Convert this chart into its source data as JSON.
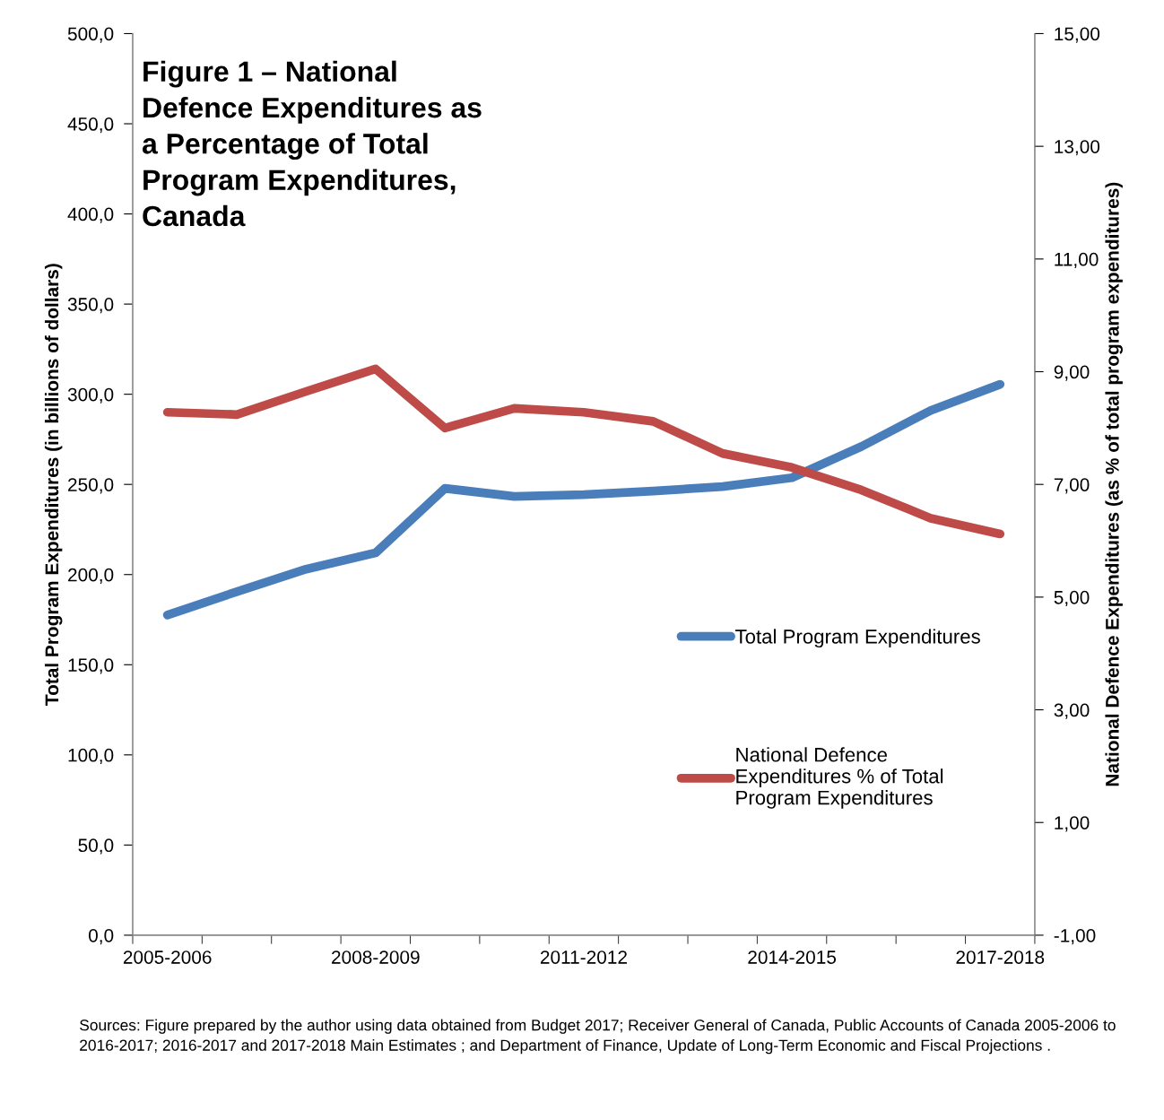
{
  "chart_data": {
    "type": "line",
    "title": "Figure 1 – National\nDefence Expenditures as\na Percentage of Total\nProgram Expenditures,\nCanada",
    "categories": [
      "2005-2006",
      null,
      null,
      "2008-2009",
      null,
      null,
      "2011-2012",
      null,
      null,
      "2014-2015",
      null,
      null,
      "2017-2018"
    ],
    "series": [
      {
        "name": "Total Program Expenditures",
        "color": "#4a7ebb",
        "values": [
          177.6,
          190.5,
          203,
          212,
          247.8,
          243.3,
          244.3,
          246.3,
          248.8,
          253.7,
          271,
          291,
          305.5
        ]
      },
      {
        "name": "National Defence\nExpenditures % of Total\nProgram Expenditures",
        "color": "#be4b48",
        "axis": "y2",
        "values": [
          8.28,
          8.24,
          8.65,
          9.05,
          8.0,
          8.35,
          8.28,
          8.12,
          7.55,
          7.3,
          6.9,
          6.4,
          6.12
        ]
      }
    ],
    "ylabel": "Total Program Expenditures (in billions of dollars)",
    "y2label": "National Defence Expenditures (as % of total program expenditures)",
    "ylim": [
      0,
      500
    ],
    "yticks": [
      {
        "value": 0,
        "label": "0,0"
      },
      {
        "value": 50,
        "label": "50,0"
      },
      {
        "value": 100,
        "label": "100,0"
      },
      {
        "value": 150,
        "label": "150,0"
      },
      {
        "value": 200,
        "label": "200,0"
      },
      {
        "value": 250,
        "label": "250,0"
      },
      {
        "value": 300,
        "label": "300,0"
      },
      {
        "value": 350,
        "label": "350,0"
      },
      {
        "value": 400,
        "label": "400,0"
      },
      {
        "value": 450,
        "label": "450,0"
      },
      {
        "value": 500,
        "label": "500,0"
      }
    ],
    "y2lim": [
      -1,
      15
    ],
    "y2ticks": [
      {
        "value": -1,
        "label": "-1,00"
      },
      {
        "value": 1,
        "label": "1,00"
      },
      {
        "value": 3,
        "label": "3,00"
      },
      {
        "value": 5,
        "label": "5,00"
      },
      {
        "value": 7,
        "label": "7,00"
      },
      {
        "value": 9,
        "label": "9,00"
      },
      {
        "value": 11,
        "label": "11,00"
      },
      {
        "value": 13,
        "label": "13,00"
      },
      {
        "value": 15,
        "label": "15,00"
      }
    ],
    "legend": "right",
    "grid": false,
    "marker": "none",
    "line_style": "solid",
    "annotations": [
      "Sources: Figure prepared by the author using data obtained from Budget 2017; Receiver General of Canada, Public Accounts of Canada 2005-2006 to 2016-2017; 2016-2017 and 2017-2018 Main Estimates ; and Department of Finance, Update of Long-Term Economic and Fiscal Projections ."
    ]
  }
}
